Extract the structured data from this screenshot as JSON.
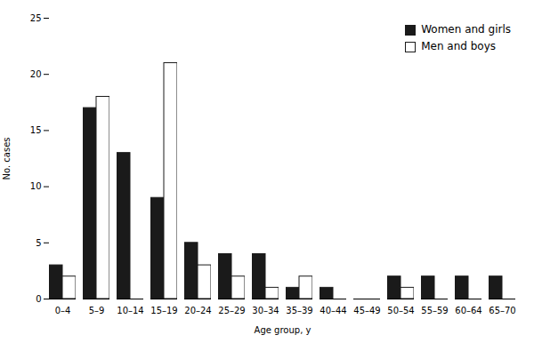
{
  "chart_data": {
    "type": "bar",
    "categories": [
      "0–4",
      "5–9",
      "10–14",
      "15–19",
      "20–24",
      "25–29",
      "30–34",
      "35–39",
      "40–44",
      "45–49",
      "50–54",
      "55–59",
      "60–64",
      "65–70"
    ],
    "series": [
      {
        "name": "Women and girls",
        "color": "#1a1a1a",
        "values": [
          3,
          17,
          13,
          9,
          5,
          4,
          4,
          1,
          1,
          0,
          2,
          2,
          2,
          2
        ]
      },
      {
        "name": "Men and boys",
        "color": "#ffffff",
        "values": [
          2,
          18,
          0,
          21,
          3,
          2,
          1,
          2,
          0,
          0,
          1,
          0,
          0,
          0
        ]
      }
    ],
    "xlabel": "Age group, y",
    "ylabel": "No. cases",
    "ylim": [
      0,
      25
    ],
    "yticks": [
      0,
      5,
      10,
      15,
      20,
      25
    ],
    "grid": false,
    "legend": "upper right"
  }
}
